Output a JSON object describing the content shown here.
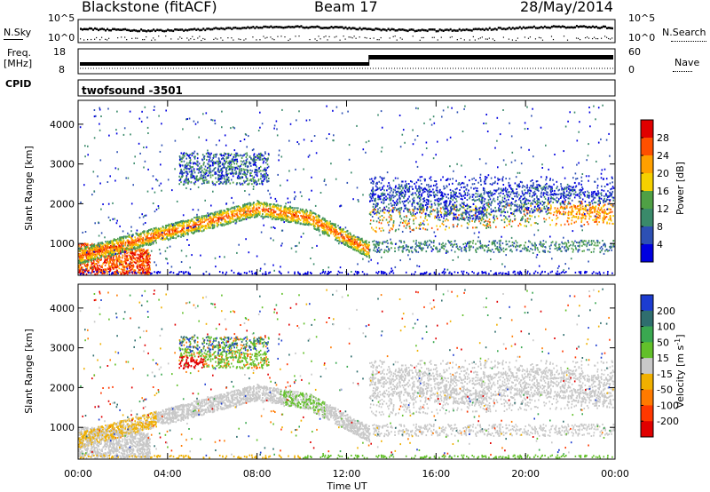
{
  "header": {
    "station": "Blackstone (fitACF)",
    "beam": "Beam 17",
    "date": "28/May/2014"
  },
  "labels": {
    "nsky": "N.Sky",
    "nsearch": "N.Search",
    "freq_line1": "Freq.",
    "freq_line2": "[MHz]",
    "nave": "Nave",
    "cpid": "CPID",
    "program": "twofsound  -3501",
    "x_axis": "Time UT"
  },
  "noise_panel": {
    "left_ticks": [
      "10^5",
      "10^0"
    ],
    "right_ticks": [
      "10^5",
      "10^0"
    ]
  },
  "freq_panel": {
    "left_ticks": [
      "18",
      "8"
    ],
    "right_ticks": [
      "60",
      "0"
    ]
  },
  "chart_data": [
    {
      "type": "heatmap",
      "name": "power",
      "ylabel": "Slant Range [km]",
      "xlabel": "Time UT",
      "x_ticks": [
        "00:00",
        "04:00",
        "08:00",
        "12:00",
        "16:00",
        "20:00",
        "00:00"
      ],
      "y_ticks": [
        1000,
        2000,
        3000,
        4000
      ],
      "xlim": [
        0,
        24
      ],
      "ylim": [
        200,
        4600
      ],
      "colorbar": {
        "label": "Power [dB]",
        "ticks": [
          4,
          8,
          12,
          16,
          20,
          24,
          28
        ],
        "range": [
          0,
          32
        ],
        "colors": [
          "#0000e0",
          "#2d50b4",
          "#3a8a6a",
          "#4fa045",
          "#f5d000",
          "#ffa000",
          "#ff5000",
          "#e00000"
        ]
      }
    },
    {
      "type": "heatmap",
      "name": "velocity",
      "ylabel": "Slant Range [km]",
      "xlabel": "Time UT",
      "x_ticks": [
        "00:00",
        "04:00",
        "08:00",
        "12:00",
        "16:00",
        "20:00",
        "00:00"
      ],
      "y_ticks": [
        1000,
        2000,
        3000,
        4000
      ],
      "xlim": [
        0,
        24
      ],
      "ylim": [
        200,
        4600
      ],
      "colorbar": {
        "label_main": "Velocity [m s",
        "label_sup": "-1",
        "label_end": "]",
        "ticks": [
          "200",
          "100",
          "50",
          "15",
          "-15",
          "-50",
          "-100",
          "-200"
        ],
        "colors": [
          "#1c3cd0",
          "#2f6e6e",
          "#3aa850",
          "#62c02a",
          "#c8c8c8",
          "#f0b000",
          "#ff7a00",
          "#ff3800",
          "#e00000"
        ]
      }
    }
  ]
}
